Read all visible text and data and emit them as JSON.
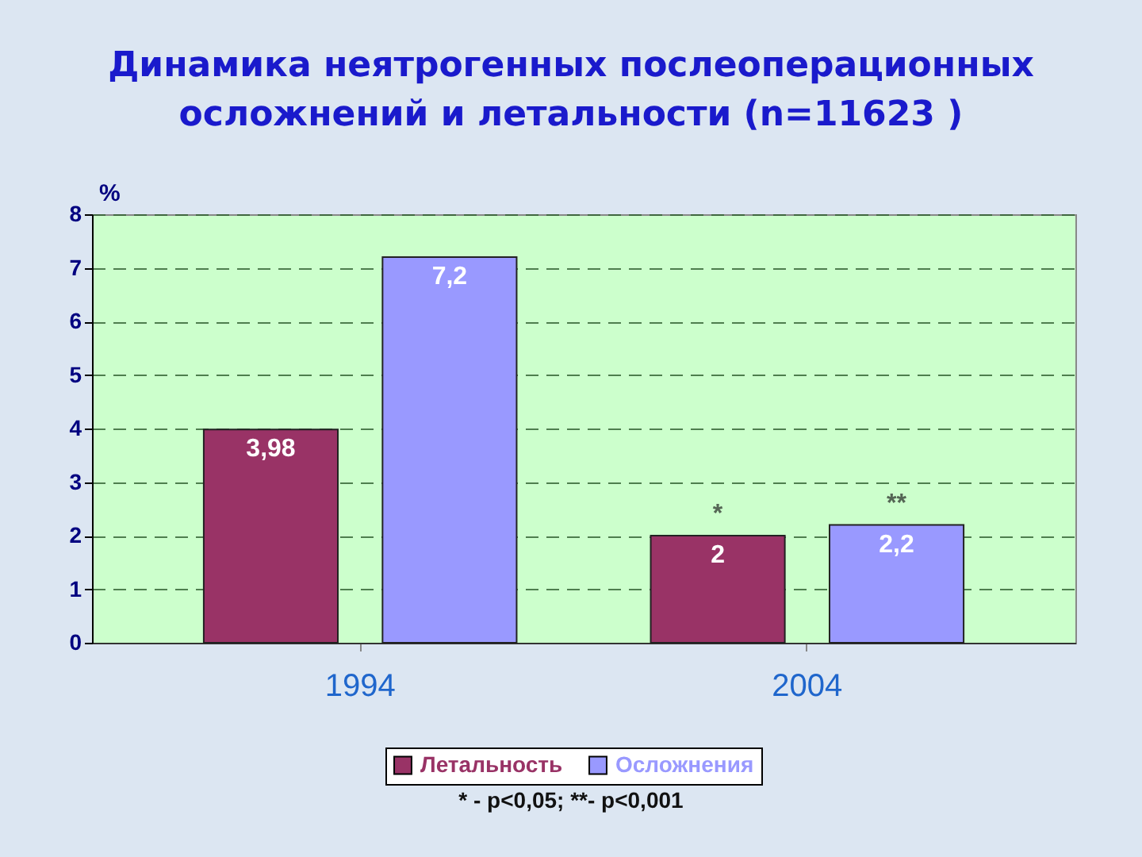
{
  "chart_data": {
    "type": "bar",
    "title": "Динамика неятрогенных послеоперационных осложнений и летальности (n=11623 )",
    "ylabel": "%",
    "categories": [
      "1994",
      "2004"
    ],
    "series": [
      {
        "name": "Летальность",
        "color": "#993366",
        "values": [
          3.98,
          2
        ],
        "value_labels": [
          "3,98",
          "2"
        ]
      },
      {
        "name": "Осложнения",
        "color": "#9999ff",
        "values": [
          7.2,
          2.2
        ],
        "value_labels": [
          "7,2",
          "2,2"
        ]
      }
    ],
    "ylim": [
      0,
      8
    ],
    "yticks": [
      0,
      1,
      2,
      3,
      4,
      5,
      6,
      7,
      8
    ],
    "grid": "y",
    "legend": "bottom",
    "annotations": [
      "*",
      "**",
      "* - p<0,05;  **- p<0,001"
    ]
  }
}
